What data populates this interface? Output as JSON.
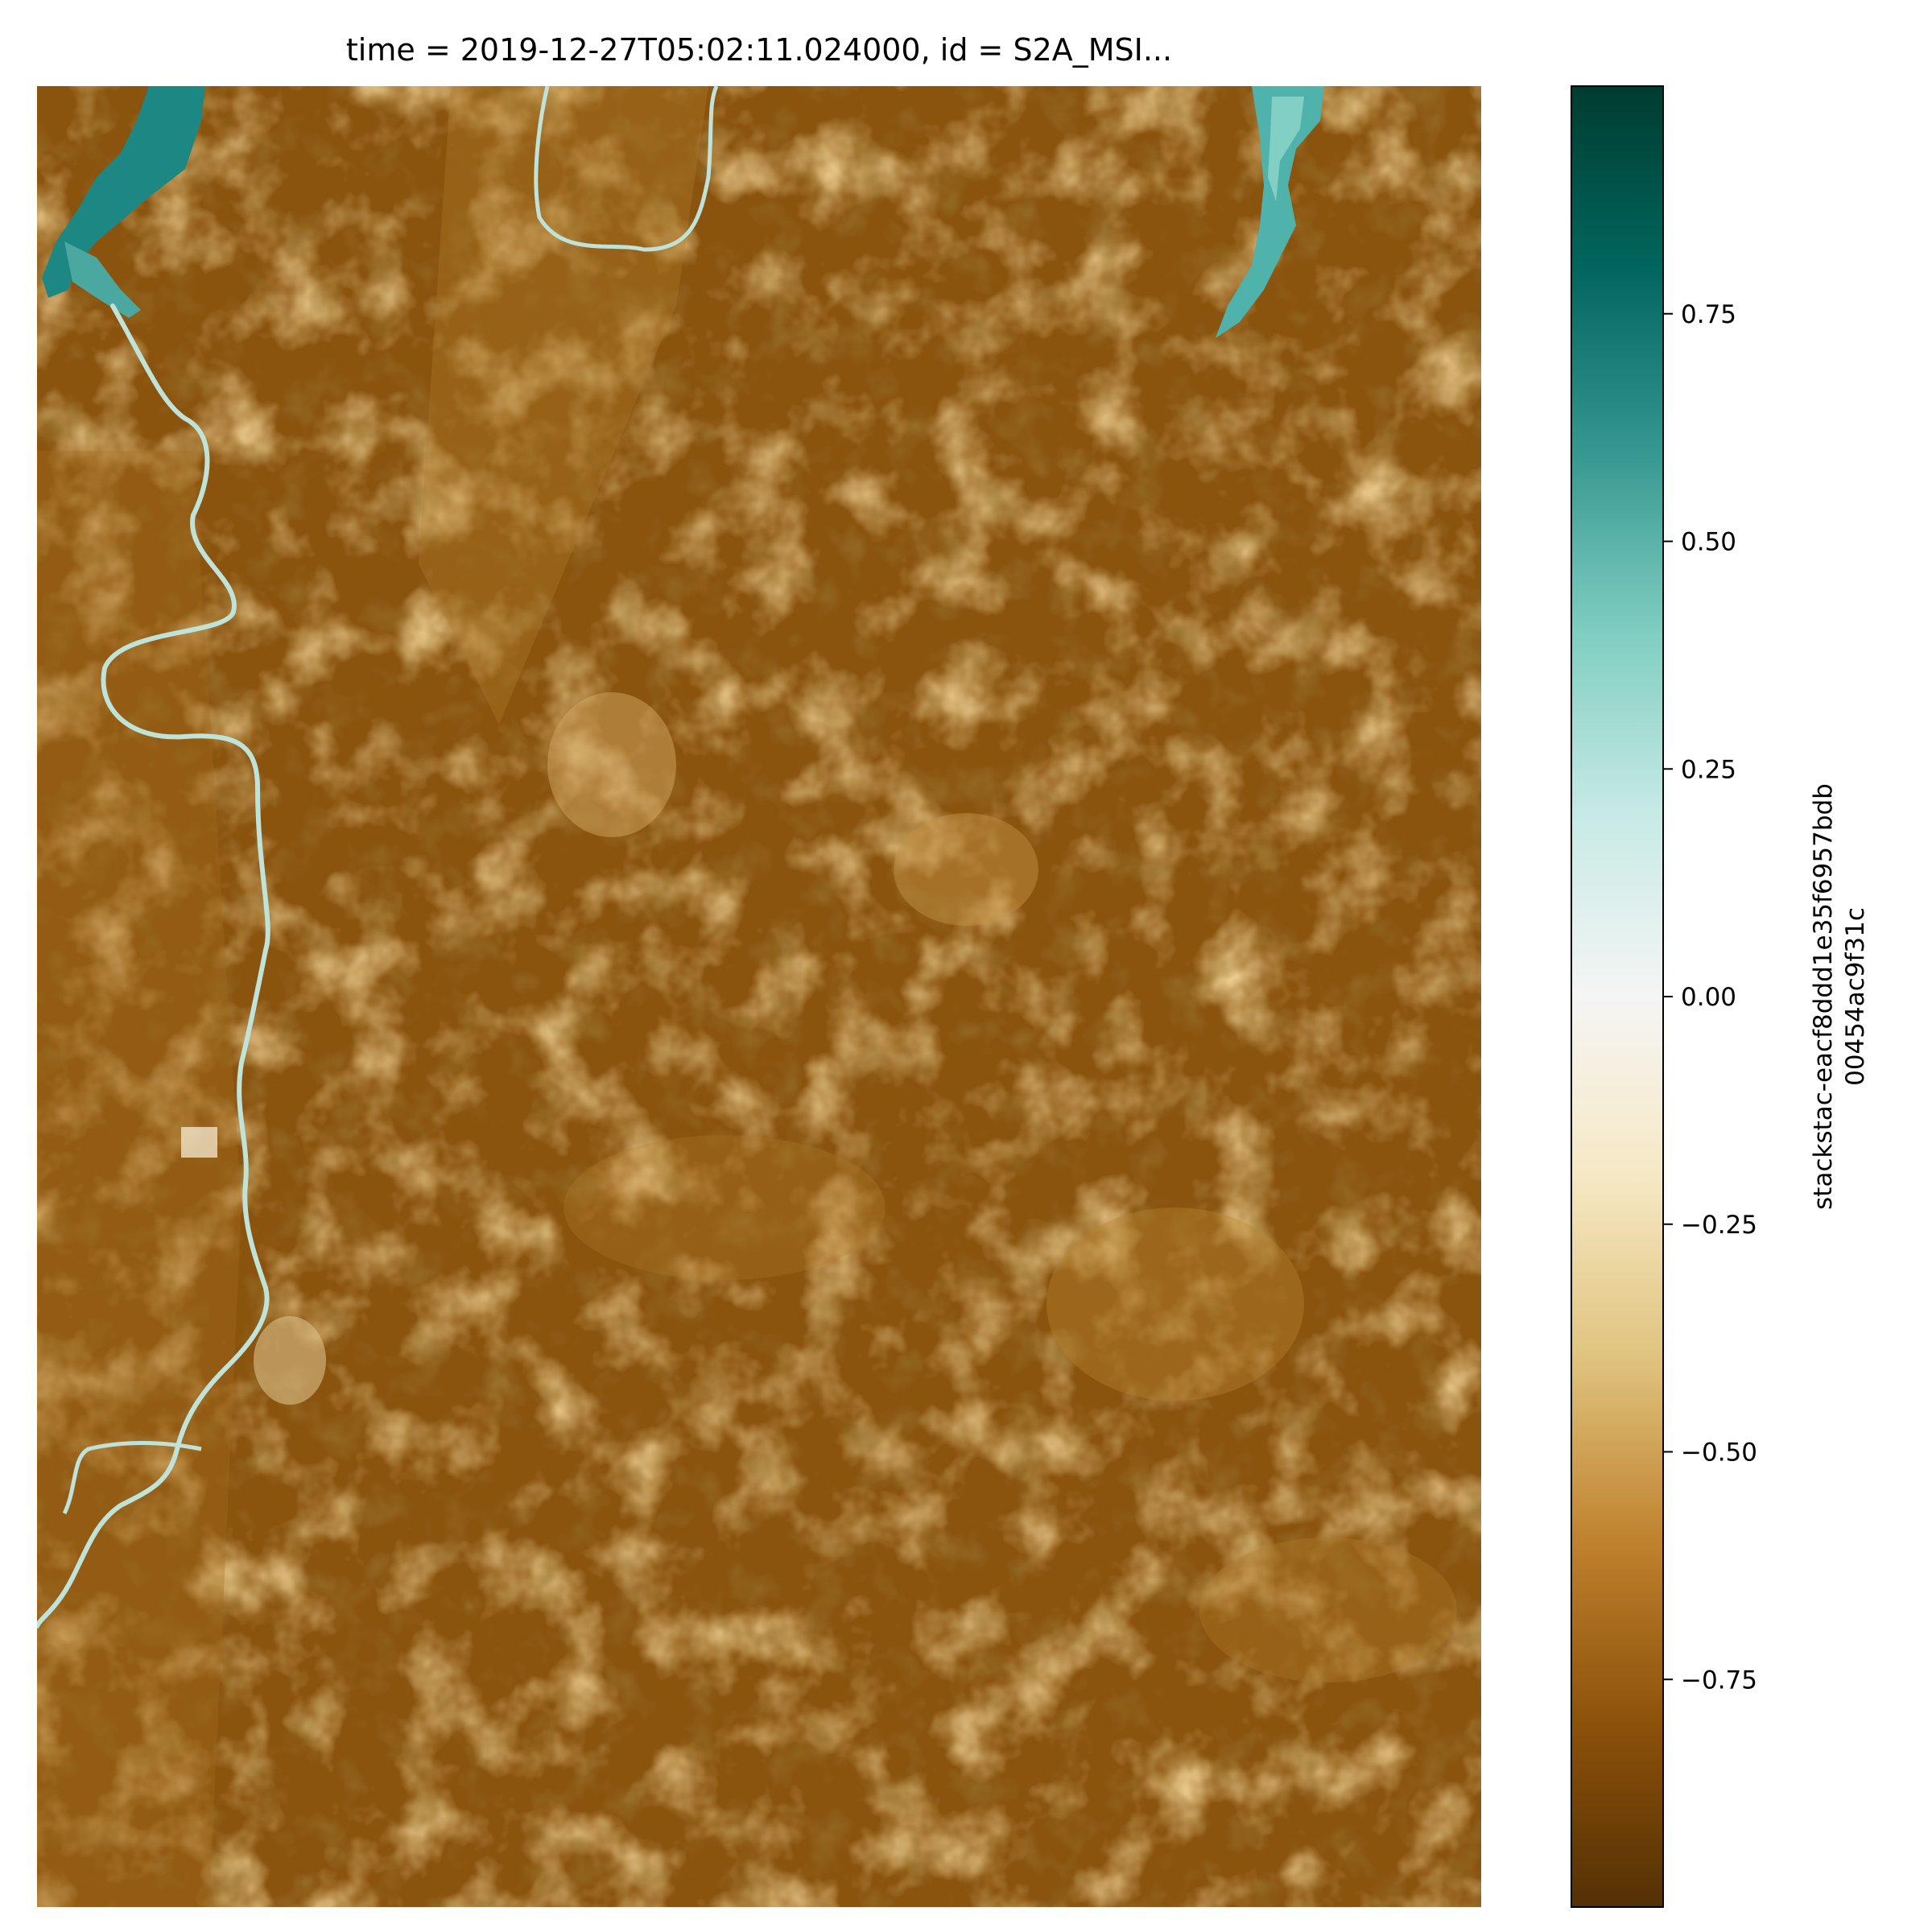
{
  "chart_data": {
    "type": "heatmap",
    "title": "time = 2019-12-27T05:02:11.024000, id = S2A_MSI...",
    "xlabel": "",
    "ylabel": "",
    "colorbar": {
      "label_line1": "stackstac-eacf8ddd1e35f6957bdb",
      "label_line2": "00454ac9f31c",
      "range": [
        -1.0,
        1.0
      ],
      "ticks": [
        0.75,
        0.5,
        0.25,
        0.0,
        -0.25,
        -0.5,
        -0.75
      ],
      "tick_labels": [
        "0.75",
        "0.50",
        "0.25",
        "0.00",
        "−0.25",
        "−0.50",
        "−0.75"
      ],
      "colormap": "BrBG",
      "colormap_stops": [
        "#543005",
        "#8c510a",
        "#bf812d",
        "#dfc27d",
        "#f6e8c3",
        "#f5f5f5",
        "#c7eae5",
        "#80cdc1",
        "#35978f",
        "#01665e",
        "#003c30"
      ]
    },
    "image_description": "Satellite raster image: predominantly brown (negative values ~ -0.6 to -0.8), with lighter tan patches, teal water bodies in the top-left and top-right, and a winding light river on the left side.",
    "colors": {
      "dominant": "#8c5410",
      "light_patch": "#c08a3a",
      "pale": "#e2c58a",
      "water": "#1c8a86",
      "river": "#bfe6e0"
    }
  }
}
